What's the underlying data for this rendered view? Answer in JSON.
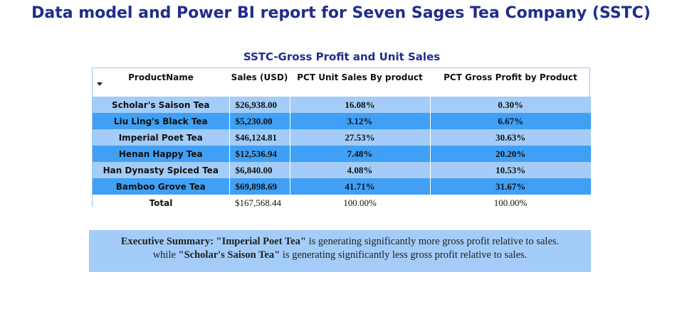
{
  "page": {
    "title": "Data model and Power BI report for Seven Sages Tea Company (SSTC)"
  },
  "table": {
    "title": "SSTC-Gross Profit and Unit Sales",
    "columns": [
      "ProductName",
      "Sales (USD)",
      "PCT Unit Sales By product",
      "PCT Gross Profit by Product"
    ],
    "rows": [
      {
        "name": "Scholar's Saison Tea",
        "sales": "$26,938.00",
        "pct_unit": "16.08%",
        "pct_profit": "0.30%"
      },
      {
        "name": "Liu Ling's Black Tea",
        "sales": "$5,230.00",
        "pct_unit": "3.12%",
        "pct_profit": "6.67%"
      },
      {
        "name": "Imperial Poet Tea",
        "sales": "$46,124.81",
        "pct_unit": "27.53%",
        "pct_profit": "30.63%"
      },
      {
        "name": "Henan Happy Tea",
        "sales": "$12,536.94",
        "pct_unit": "7.48%",
        "pct_profit": "20.20%"
      },
      {
        "name": "Han Dynasty Spiced Tea",
        "sales": "$6,840.00",
        "pct_unit": "4.08%",
        "pct_profit": "10.53%"
      },
      {
        "name": "Bamboo Grove Tea",
        "sales": "$69,898.69",
        "pct_unit": "41.71%",
        "pct_profit": "31.67%"
      }
    ],
    "total": {
      "name": "Total",
      "sales": "$167,568.44",
      "pct_unit": "100.00%",
      "pct_profit": "100.00%"
    }
  },
  "summary": {
    "label": "Executive Summary:",
    "product_high": "\"Imperial Poet Tea\"",
    "text_high": " is generating significantly more gross profit relative to sales.",
    "prefix_low": "while ",
    "product_low": "\"Scholar's Saison Tea\"",
    "text_low": " is generating significantly less gross profit relative to sales."
  },
  "colors": {
    "title": "#1f2d8a",
    "row_light": "#a3cdf8",
    "row_dark": "#3fa0f5",
    "border": "#9ec8ee"
  },
  "icons": {
    "sort": "sort-descending-icon"
  }
}
